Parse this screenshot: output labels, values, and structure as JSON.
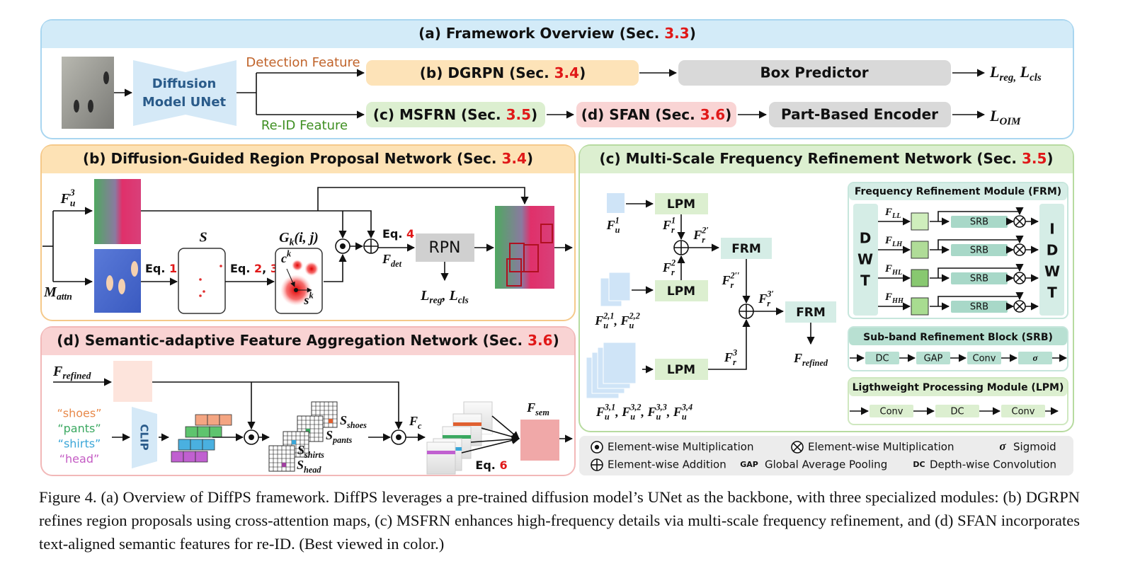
{
  "panel_a": {
    "title": [
      {
        "t": "(a) Framework Overview (Sec. "
      },
      {
        "red": "3.3"
      },
      {
        "t": ")"
      }
    ],
    "unet": [
      "Diffusion",
      "Model UNet"
    ],
    "detection_feature": "Detection Feature",
    "reid_feature": "Re-ID Feature",
    "dgrpn": [
      {
        "t": "(b) DGRPN (Sec. "
      },
      {
        "red": "3.4"
      },
      {
        "t": ")"
      }
    ],
    "box_predictor": "Box Predictor",
    "loss_det": [
      {
        "t": "L"
      },
      {
        "sub": "reg,"
      },
      {
        "t": " L"
      },
      {
        "sub": "cls"
      }
    ],
    "msfrn": [
      {
        "t": "(c) MSFRN (Sec. "
      },
      {
        "red": "3.5"
      },
      {
        "t": ")"
      }
    ],
    "sfan": [
      {
        "t": "(d) SFAN (Sec. "
      },
      {
        "red": "3.6"
      },
      {
        "t": ")"
      }
    ],
    "part_encoder": "Part-Based Encoder",
    "loss_oim": [
      {
        "t": "L"
      },
      {
        "sub": "OIM"
      }
    ]
  },
  "panel_b": {
    "title": [
      {
        "t": "(b) Diffusion-Guided Region Proposal Network (Sec. "
      },
      {
        "red": "3.4"
      },
      {
        "t": ")"
      }
    ],
    "fu3": [
      {
        "t": "F"
      },
      {
        "sub": "u"
      },
      {
        "sup": "3"
      }
    ],
    "mattn": [
      {
        "t": "M"
      },
      {
        "sub": "attn"
      }
    ],
    "eq1": [
      {
        "t": "Eq. "
      },
      {
        "red": "1"
      }
    ],
    "s": "S",
    "eq23": [
      {
        "t": "Eq. "
      },
      {
        "red": "2"
      },
      {
        "t": ", "
      },
      {
        "red": "3"
      }
    ],
    "gk": [
      {
        "t": "G"
      },
      {
        "sub": "k"
      },
      {
        "t": "(i, j)"
      }
    ],
    "ck": [
      {
        "t": "c"
      },
      {
        "sup": "k"
      }
    ],
    "sk": [
      {
        "t": "s"
      },
      {
        "sup": "k"
      }
    ],
    "eq4": [
      {
        "t": "Eq. "
      },
      {
        "red": "4"
      }
    ],
    "fdet": [
      {
        "t": "F"
      },
      {
        "sub": "det"
      }
    ],
    "rpn": "RPN",
    "loss": [
      {
        "t": "L"
      },
      {
        "sub": "reg"
      },
      {
        "t": ", L"
      },
      {
        "sub": "cls"
      }
    ]
  },
  "panel_c": {
    "title": [
      {
        "t": "(c) Multi-Scale Frequency Refinement Network (Sec. "
      },
      {
        "red": "3.5"
      },
      {
        "t": ")"
      }
    ],
    "fu1": [
      {
        "t": "F"
      },
      {
        "sub": "u"
      },
      {
        "sup": "1"
      }
    ],
    "fu2": [
      {
        "t": "F"
      },
      {
        "sub": "u"
      },
      {
        "sup": "2,1"
      },
      {
        "t": ", F"
      },
      {
        "sub": "u"
      },
      {
        "sup": "2,2"
      }
    ],
    "fu3": [
      {
        "t": "F"
      },
      {
        "sub": "u"
      },
      {
        "sup": "3,1"
      },
      {
        "t": ", F"
      },
      {
        "sub": "u"
      },
      {
        "sup": "3,2"
      },
      {
        "t": ", F"
      },
      {
        "sub": "u"
      },
      {
        "sup": "3,3"
      },
      {
        "t": ", F"
      },
      {
        "sub": "u"
      },
      {
        "sup": "3,4"
      }
    ],
    "lpm": [
      "LPM",
      "LPM",
      "LPM"
    ],
    "frm": [
      "FRM",
      "FRM"
    ],
    "fr1": [
      {
        "t": "F"
      },
      {
        "sub": "r"
      },
      {
        "sup": "1"
      }
    ],
    "fr2": [
      {
        "t": "F"
      },
      {
        "sub": "r"
      },
      {
        "sup": "2"
      }
    ],
    "fr2p": [
      {
        "t": "F"
      },
      {
        "sub": "r"
      },
      {
        "sup": "2′"
      }
    ],
    "fr2pp": [
      {
        "t": "F"
      },
      {
        "sub": "r"
      },
      {
        "sup": "2′′"
      }
    ],
    "fr3": [
      {
        "t": "F"
      },
      {
        "sub": "r"
      },
      {
        "sup": "3"
      }
    ],
    "fr3p": [
      {
        "t": "F"
      },
      {
        "sub": "r"
      },
      {
        "sup": "3′"
      }
    ],
    "frefined": [
      {
        "t": "F"
      },
      {
        "sub": "refined"
      }
    ],
    "frm_module": {
      "title": "Frequency Refinement Module (FRM)",
      "dwt": [
        "D",
        "W",
        "T"
      ],
      "idwt": [
        "I",
        "D",
        "W",
        "T"
      ],
      "bands": [
        [
          {
            "t": "F"
          },
          {
            "sub": "LL"
          }
        ],
        [
          {
            "t": "F"
          },
          {
            "sub": "LH"
          }
        ],
        [
          {
            "t": "F"
          },
          {
            "sub": "HL"
          }
        ],
        [
          {
            "t": "F"
          },
          {
            "sub": "HH"
          }
        ]
      ],
      "srb": [
        "SRB",
        "SRB",
        "SRB",
        "SRB"
      ]
    },
    "srb_block": {
      "title": "Sub-band Refinement Block (SRB)",
      "steps": [
        "DC",
        "GAP",
        "Conv",
        "σ"
      ]
    },
    "lpm_block": {
      "title": "Ligthweight Processing Module (LPM)",
      "steps": [
        "Conv",
        "DC",
        "Conv"
      ]
    }
  },
  "panel_d": {
    "title": [
      {
        "t": "(d) Semantic-adaptive Feature Aggregation Network (Sec. "
      },
      {
        "red": "3.6"
      },
      {
        "t": ")"
      }
    ],
    "frefined": [
      {
        "t": "F"
      },
      {
        "sub": "refined"
      }
    ],
    "words": [
      {
        "text": "“shoes”",
        "color": "#e8894a"
      },
      {
        "text": "“pants”",
        "color": "#3aa860"
      },
      {
        "text": "“shirts”",
        "color": "#3aa6d8"
      },
      {
        "text": "“head”",
        "color": "#c45cc4"
      }
    ],
    "clip": "CLIP",
    "s_shoes": [
      {
        "t": "S"
      },
      {
        "sub": "shoes"
      }
    ],
    "s_pants": [
      {
        "t": "S"
      },
      {
        "sub": "pants"
      }
    ],
    "s_shirts": [
      {
        "t": "S"
      },
      {
        "sub": "shirts"
      }
    ],
    "s_head": [
      {
        "t": "S"
      },
      {
        "sub": "head"
      }
    ],
    "fc": [
      {
        "t": "F"
      },
      {
        "sub": "c"
      }
    ],
    "fsem": [
      {
        "t": "F"
      },
      {
        "sub": "sem"
      }
    ],
    "eq6": [
      {
        "t": "Eq. "
      },
      {
        "red": "6"
      }
    ]
  },
  "legend": {
    "items": [
      {
        "label": "Element-wise Multiplication"
      },
      {
        "label": "Element-wise Multiplication"
      },
      {
        "symbol": "σ",
        "label": "Sigmoid"
      },
      {
        "label": "Element-wise Addition"
      },
      {
        "symbol": "GAP",
        "label": "Global Average Pooling"
      },
      {
        "symbol": "DC",
        "label": "Depth-wise Convolution"
      }
    ]
  },
  "caption": "Figure 4. (a) Overview of DiffPS framework. DiffPS leverages a pre-trained diffusion model’s UNet as the backbone, with three specialized modules: (b) DGRPN refines region proposals using cross-attention maps, (c) MSFRN enhances high-frequency details via multi-scale frequency refinement, and (d) SFAN incorporates text-aligned semantic features for re-ID. (Best viewed in color.)"
}
